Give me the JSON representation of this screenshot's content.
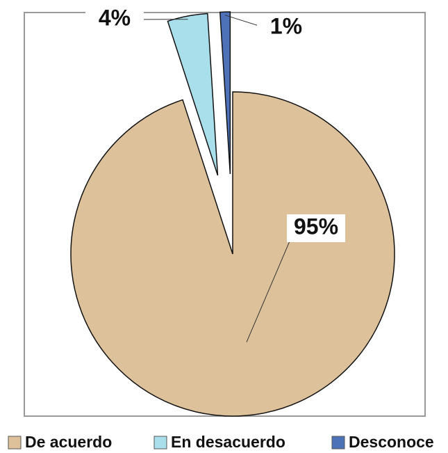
{
  "chart_data": {
    "type": "pie",
    "categories": [
      "De acuerdo",
      "En desacuerdo",
      "Desconoce"
    ],
    "values": [
      95,
      4,
      1
    ],
    "value_labels": [
      "95%",
      "4%",
      "1%"
    ],
    "colors": [
      "#dcc19b",
      "#a9dfea",
      "#4d72b8"
    ],
    "legend": "bottom"
  }
}
